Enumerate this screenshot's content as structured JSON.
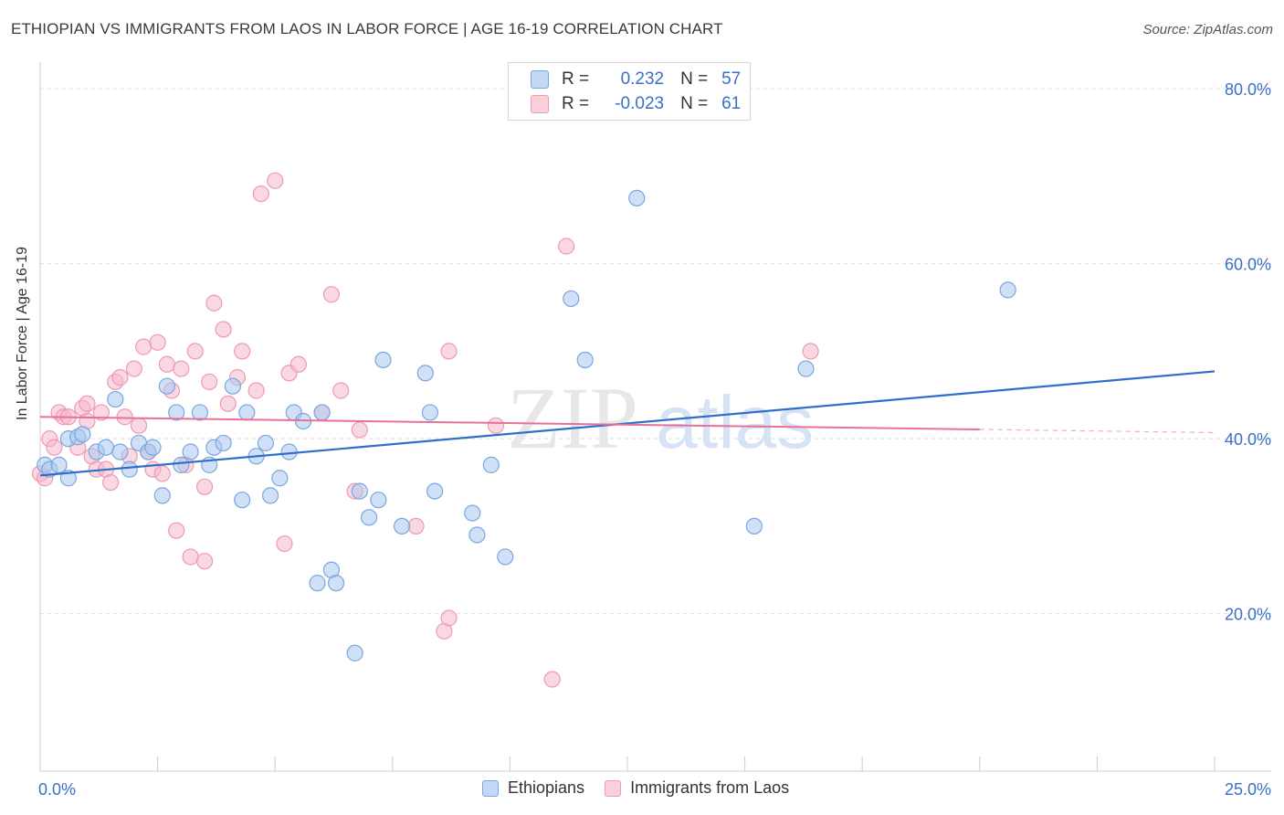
{
  "title": "ETHIOPIAN VS IMMIGRANTS FROM LAOS IN LABOR FORCE | AGE 16-19 CORRELATION CHART",
  "source": "Source: ZipAtlas.com",
  "watermark": {
    "zip": "ZIP",
    "atlas": "atlas"
  },
  "colors": {
    "blue_fill": "#aac8f0",
    "blue_stroke": "#7aa6e0",
    "blue_line": "#2f6fcc",
    "pink_fill": "#f6b8cb",
    "pink_stroke": "#ee9ab4",
    "pink_line": "#e8709a",
    "axis_text": "#3a6fc8",
    "grid": "#dddddd"
  },
  "legend_stats": {
    "rows": [
      {
        "series": "Ethiopians",
        "r_label": "R =",
        "r_value": "0.232",
        "n_label": "N =",
        "n_value": "57"
      },
      {
        "series": "Immigrants from Laos",
        "r_label": "R =",
        "r_value": "-0.023",
        "n_label": "N =",
        "n_value": "61"
      }
    ]
  },
  "chart_data": {
    "type": "scatter",
    "title": "ETHIOPIAN VS IMMIGRANTS FROM LAOS IN LABOR FORCE | AGE 16-19 CORRELATION CHART",
    "xlabel": "",
    "ylabel": "In Labor Force | Age 16-19",
    "xlim": [
      0,
      25
    ],
    "ylim": [
      2,
      82
    ],
    "x_tick_labels": [
      "0.0%",
      "25.0%"
    ],
    "y_tick_labels": [
      "20.0%",
      "40.0%",
      "60.0%",
      "80.0%"
    ],
    "y_ticks": [
      20,
      40,
      60,
      80
    ],
    "grid": true,
    "legend": [
      "Ethiopians",
      "Immigrants from Laos"
    ],
    "series": [
      {
        "name": "Ethiopians",
        "color": "blue",
        "trend": {
          "x": [
            0,
            25
          ],
          "y": [
            35.8,
            47.7
          ],
          "dashed_from": null
        },
        "points": [
          [
            0.1,
            37.0
          ],
          [
            0.2,
            36.5
          ],
          [
            0.4,
            37.0
          ],
          [
            0.6,
            35.5
          ],
          [
            0.6,
            40.0
          ],
          [
            0.8,
            40.2
          ],
          [
            0.9,
            40.5
          ],
          [
            1.2,
            38.5
          ],
          [
            1.4,
            39.0
          ],
          [
            1.6,
            44.5
          ],
          [
            1.7,
            38.5
          ],
          [
            1.9,
            36.5
          ],
          [
            2.1,
            39.5
          ],
          [
            2.3,
            38.5
          ],
          [
            2.4,
            39.0
          ],
          [
            2.6,
            33.5
          ],
          [
            2.7,
            46.0
          ],
          [
            2.9,
            43.0
          ],
          [
            3.0,
            37.0
          ],
          [
            3.2,
            38.5
          ],
          [
            3.4,
            43.0
          ],
          [
            3.6,
            37.0
          ],
          [
            3.7,
            39.0
          ],
          [
            3.9,
            39.5
          ],
          [
            4.1,
            46.0
          ],
          [
            4.3,
            33.0
          ],
          [
            4.4,
            43.0
          ],
          [
            4.6,
            38.0
          ],
          [
            4.8,
            39.5
          ],
          [
            4.9,
            33.5
          ],
          [
            5.1,
            35.5
          ],
          [
            5.3,
            38.5
          ],
          [
            5.4,
            43.0
          ],
          [
            5.6,
            42.0
          ],
          [
            5.9,
            23.5
          ],
          [
            6.0,
            43.0
          ],
          [
            6.2,
            25.0
          ],
          [
            6.3,
            23.5
          ],
          [
            6.7,
            15.5
          ],
          [
            6.8,
            34.0
          ],
          [
            7.0,
            31.0
          ],
          [
            7.2,
            33.0
          ],
          [
            7.3,
            49.0
          ],
          [
            7.7,
            30.0
          ],
          [
            8.2,
            47.5
          ],
          [
            8.3,
            43.0
          ],
          [
            8.4,
            34.0
          ],
          [
            9.2,
            31.5
          ],
          [
            9.3,
            29.0
          ],
          [
            9.6,
            37.0
          ],
          [
            9.9,
            26.5
          ],
          [
            11.3,
            56.0
          ],
          [
            11.6,
            49.0
          ],
          [
            12.7,
            67.5
          ],
          [
            15.2,
            30.0
          ],
          [
            16.3,
            48.0
          ],
          [
            20.6,
            57.0
          ]
        ]
      },
      {
        "name": "Immigrants from Laos",
        "color": "pink",
        "trend": {
          "x": [
            0,
            25
          ],
          "y": [
            42.5,
            40.7
          ],
          "dashed_from": 20.0
        },
        "points": [
          [
            0.0,
            36.0
          ],
          [
            0.1,
            35.5
          ],
          [
            0.2,
            40.0
          ],
          [
            0.3,
            39.0
          ],
          [
            0.4,
            43.0
          ],
          [
            0.5,
            42.5
          ],
          [
            0.6,
            42.5
          ],
          [
            0.8,
            39.0
          ],
          [
            0.9,
            43.5
          ],
          [
            1.0,
            44.0
          ],
          [
            1.0,
            42.0
          ],
          [
            1.1,
            38.0
          ],
          [
            1.2,
            36.5
          ],
          [
            1.3,
            43.0
          ],
          [
            1.4,
            36.5
          ],
          [
            1.5,
            35.0
          ],
          [
            1.6,
            46.5
          ],
          [
            1.7,
            47.0
          ],
          [
            1.8,
            42.5
          ],
          [
            1.9,
            38.0
          ],
          [
            2.0,
            48.0
          ],
          [
            2.1,
            41.5
          ],
          [
            2.2,
            50.5
          ],
          [
            2.3,
            38.5
          ],
          [
            2.4,
            36.5
          ],
          [
            2.5,
            51.0
          ],
          [
            2.6,
            36.0
          ],
          [
            2.7,
            48.5
          ],
          [
            2.8,
            45.5
          ],
          [
            2.9,
            29.5
          ],
          [
            3.0,
            48.0
          ],
          [
            3.1,
            37.0
          ],
          [
            3.2,
            26.5
          ],
          [
            3.3,
            50.0
          ],
          [
            3.5,
            26.0
          ],
          [
            3.5,
            34.5
          ],
          [
            3.6,
            46.5
          ],
          [
            3.7,
            55.5
          ],
          [
            3.9,
            52.5
          ],
          [
            4.0,
            44.0
          ],
          [
            4.2,
            47.0
          ],
          [
            4.3,
            50.0
          ],
          [
            4.6,
            45.5
          ],
          [
            4.7,
            68.0
          ],
          [
            5.0,
            69.5
          ],
          [
            5.2,
            28.0
          ],
          [
            5.3,
            47.5
          ],
          [
            5.5,
            48.5
          ],
          [
            6.0,
            43.0
          ],
          [
            6.2,
            56.5
          ],
          [
            6.4,
            45.5
          ],
          [
            6.7,
            34.0
          ],
          [
            6.8,
            41.0
          ],
          [
            8.0,
            30.0
          ],
          [
            8.6,
            18.0
          ],
          [
            8.7,
            19.5
          ],
          [
            8.7,
            50.0
          ],
          [
            9.7,
            41.5
          ],
          [
            10.9,
            12.5
          ],
          [
            11.2,
            62.0
          ],
          [
            16.4,
            50.0
          ]
        ]
      }
    ]
  }
}
